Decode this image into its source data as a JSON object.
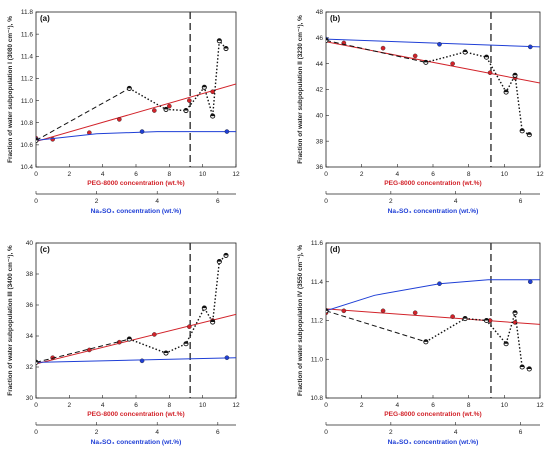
{
  "colors": {
    "peg": "#d2232a",
    "na2so4": "#1f3fd6",
    "mixture": "#111111",
    "divider": "#333333"
  },
  "chart_data": [
    {
      "type": "line",
      "panel_label": "(a)",
      "ylabel": "Fraction of water subpopulation I (3080 cm⁻¹), %",
      "xlabel_peg": "PEG-8000 concentration (wt.%)",
      "xlabel_salt": "Na₂SO₄ concentration (wt.%)",
      "ylim": [
        10.4,
        11.8
      ],
      "yticks": [
        "10.4",
        "10.6",
        "10.8",
        "11.0",
        "11.2",
        "11.4",
        "11.6",
        "11.8"
      ],
      "xlim_peg": [
        0,
        12
      ],
      "xticks_peg": [
        "0",
        "2",
        "4",
        "6",
        "8",
        "10",
        "12"
      ],
      "xlim_salt": [
        0,
        6.6
      ],
      "xticks_salt": [
        "0",
        "2",
        "4",
        "6"
      ],
      "divider_x": 9.25,
      "series": [
        {
          "kind": "peg",
          "x": [
            0,
            1.0,
            3.2,
            5.0,
            7.1,
            8.0,
            9.2,
            10.6
          ],
          "y": [
            10.66,
            10.65,
            10.71,
            10.83,
            10.91,
            10.95,
            11.0,
            11.08
          ],
          "fit": [
            [
              0,
              10.63
            ],
            [
              12,
              11.15
            ]
          ]
        },
        {
          "kind": "salt",
          "x": [
            0,
            3.5,
            6.3
          ],
          "y": [
            10.65,
            10.72,
            10.72
          ],
          "fit": [
            [
              0,
              10.64
            ],
            [
              2,
              10.7
            ],
            [
              4,
              10.72
            ],
            [
              6.6,
              10.72
            ]
          ]
        },
        {
          "kind": "mix",
          "x": [
            0,
            5.6,
            7.8,
            9.0,
            10.1,
            10.6,
            11.0,
            11.4
          ],
          "y": [
            10.64,
            11.11,
            10.92,
            10.91,
            11.12,
            10.86,
            11.54,
            11.47
          ],
          "dashed_to": 1
        }
      ]
    },
    {
      "type": "line",
      "panel_label": "(b)",
      "ylabel": "Fraction of water subpopulation II (3230 cm⁻¹), %",
      "xlabel_peg": "PEG-8000 concentration (wt.%)",
      "xlabel_salt": "Na₂SO₄ concentration (wt.%)",
      "ylim": [
        36,
        48
      ],
      "yticks": [
        "36",
        "38",
        "40",
        "42",
        "44",
        "46",
        "48"
      ],
      "xlim_peg": [
        0,
        12
      ],
      "xticks_peg": [
        "0",
        "2",
        "4",
        "6",
        "8",
        "10",
        "12"
      ],
      "xlim_salt": [
        0,
        6.6
      ],
      "xticks_salt": [
        "0",
        "2",
        "4",
        "6"
      ],
      "divider_x": 9.25,
      "series": [
        {
          "kind": "peg",
          "x": [
            0,
            1.0,
            3.2,
            5.0,
            7.1,
            9.2,
            10.6
          ],
          "y": [
            45.8,
            45.6,
            45.2,
            44.6,
            44.0,
            43.3,
            42.9
          ],
          "fit": [
            [
              0,
              45.7
            ],
            [
              12,
              42.5
            ]
          ]
        },
        {
          "kind": "salt",
          "x": [
            0,
            3.5,
            6.3
          ],
          "y": [
            45.9,
            45.5,
            45.3
          ],
          "fit": [
            [
              0,
              45.9
            ],
            [
              6.6,
              45.3
            ]
          ]
        },
        {
          "kind": "mix",
          "x": [
            0,
            5.6,
            7.8,
            9.0,
            10.1,
            10.6,
            11.0,
            11.4
          ],
          "y": [
            45.8,
            44.1,
            44.9,
            44.5,
            41.8,
            43.1,
            38.8,
            38.5
          ],
          "dashed_to": 1
        }
      ]
    },
    {
      "type": "line",
      "panel_label": "(c)",
      "ylabel": "Fraction of water subpopulation III (3400 cm⁻¹), %",
      "xlabel_peg": "PEG-8000 concentration (wt.%)",
      "xlabel_salt": "Na₂SO₄ concentration (wt.%)",
      "ylim": [
        30,
        40
      ],
      "yticks": [
        "30",
        "32",
        "34",
        "36",
        "38",
        "40"
      ],
      "xlim_peg": [
        0,
        12
      ],
      "xticks_peg": [
        "0",
        "2",
        "4",
        "6",
        "8",
        "10",
        "12"
      ],
      "xlim_salt": [
        0,
        6.6
      ],
      "xticks_salt": [
        "0",
        "2",
        "4",
        "6"
      ],
      "divider_x": 9.25,
      "series": [
        {
          "kind": "peg",
          "x": [
            0,
            1.0,
            3.2,
            5.0,
            7.1,
            9.2,
            10.6
          ],
          "y": [
            32.3,
            32.6,
            33.1,
            33.6,
            34.1,
            34.6,
            35.0
          ],
          "fit": [
            [
              0,
              32.2
            ],
            [
              12,
              35.4
            ]
          ]
        },
        {
          "kind": "salt",
          "x": [
            0,
            3.5,
            6.3
          ],
          "y": [
            32.3,
            32.4,
            32.6
          ],
          "fit": [
            [
              0,
              32.3
            ],
            [
              6.6,
              32.6
            ]
          ]
        },
        {
          "kind": "mix",
          "x": [
            0,
            5.6,
            7.8,
            9.0,
            10.1,
            10.6,
            11.0,
            11.4
          ],
          "y": [
            32.3,
            33.8,
            32.9,
            33.5,
            35.8,
            34.9,
            38.8,
            39.2
          ],
          "dashed_to": 1
        }
      ]
    },
    {
      "type": "line",
      "panel_label": "(d)",
      "ylabel": "Fraction of water subpopulation IV (3550 cm⁻¹), %",
      "xlabel_peg": "PEG-8000 concentration (wt.%)",
      "xlabel_salt": "Na₂SO₄ concentration (wt.%)",
      "ylim": [
        10.8,
        11.6
      ],
      "yticks": [
        "10.8",
        "11.0",
        "11.2",
        "11.4",
        "11.6"
      ],
      "xlim_peg": [
        0,
        12
      ],
      "xticks_peg": [
        "0",
        "2",
        "4",
        "6",
        "8",
        "10",
        "12"
      ],
      "xlim_salt": [
        0,
        6.6
      ],
      "xticks_salt": [
        "0",
        "2",
        "4",
        "6"
      ],
      "divider_x": 9.25,
      "series": [
        {
          "kind": "peg",
          "x": [
            0,
            1.0,
            3.2,
            5.0,
            7.1,
            9.2,
            10.6
          ],
          "y": [
            11.24,
            11.25,
            11.25,
            11.24,
            11.22,
            11.2,
            11.19
          ],
          "fit": [
            [
              0,
              11.26
            ],
            [
              12,
              11.18
            ]
          ]
        },
        {
          "kind": "salt",
          "x": [
            0,
            3.5,
            6.3
          ],
          "y": [
            11.25,
            11.39,
            11.4
          ],
          "fit": [
            [
              0,
              11.25
            ],
            [
              1.5,
              11.33
            ],
            [
              3.5,
              11.39
            ],
            [
              5,
              11.41
            ],
            [
              6.6,
              11.41
            ]
          ]
        },
        {
          "kind": "mix",
          "x": [
            0,
            5.6,
            7.8,
            9.0,
            10.1,
            10.6,
            11.0,
            11.4
          ],
          "y": [
            11.25,
            11.09,
            11.21,
            11.2,
            11.08,
            11.24,
            10.96,
            10.95
          ],
          "dashed_to": 1
        }
      ]
    }
  ]
}
